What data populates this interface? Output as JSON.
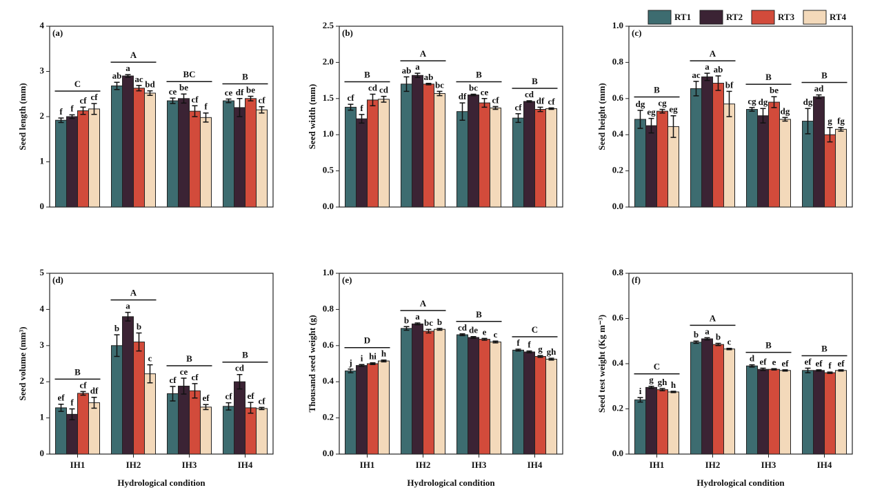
{
  "legend": [
    {
      "name": "RT1",
      "color": "#3d6c70"
    },
    {
      "name": "RT2",
      "color": "#3b2334"
    },
    {
      "name": "RT3",
      "color": "#d24b3b"
    },
    {
      "name": "RT4",
      "color": "#f3d9ba"
    }
  ],
  "chart_data": [
    {
      "type": "bar",
      "panel": "(a)",
      "y_label": "Seed length (mm)",
      "ylim": [
        0,
        4
      ],
      "yticks": [
        0,
        1,
        2,
        3,
        4
      ],
      "group_letters": [
        "C",
        "A",
        "BC",
        "B"
      ],
      "series": [
        {
          "values": [
            1.92,
            2.68,
            2.35,
            2.35
          ],
          "errors": [
            0.05,
            0.08,
            0.06,
            0.04
          ],
          "letters": [
            "f",
            "ab",
            "ce",
            "ce"
          ]
        },
        {
          "values": [
            2.0,
            2.9,
            2.4,
            2.2
          ],
          "errors": [
            0.04,
            0.03,
            0.1,
            0.2
          ],
          "letters": [
            "f",
            "a",
            "be",
            "df"
          ]
        },
        {
          "values": [
            2.13,
            2.63,
            2.12,
            2.4
          ],
          "errors": [
            0.08,
            0.06,
            0.12,
            0.05
          ],
          "letters": [
            "cf",
            "ac",
            "cf",
            "be"
          ]
        },
        {
          "values": [
            2.17,
            2.52,
            1.98,
            2.15
          ],
          "errors": [
            0.12,
            0.05,
            0.1,
            0.07
          ],
          "letters": [
            "cf",
            "bd",
            "f",
            "cf"
          ]
        }
      ]
    },
    {
      "type": "bar",
      "panel": "(b)",
      "y_label": "Seed width (mm)",
      "ylim": [
        0,
        2.5
      ],
      "yticks": [
        {
          "value": 0,
          "label": "0.0"
        },
        0.5,
        {
          "value": 1,
          "label": "1.0"
        },
        1.5,
        {
          "value": 2,
          "label": "2.0"
        },
        2.5
      ],
      "group_letters": [
        "B",
        "A",
        "B",
        "B"
      ],
      "series": [
        {
          "values": [
            1.38,
            1.7,
            1.32,
            1.23
          ],
          "errors": [
            0.04,
            0.1,
            0.12,
            0.06
          ],
          "letters": [
            "cf",
            "ab",
            "df",
            "cf"
          ]
        },
        {
          "values": [
            1.22,
            1.82,
            1.55,
            1.46
          ],
          "errors": [
            0.06,
            0.03,
            0.01,
            0.01
          ],
          "letters": [
            "f",
            "a",
            "bc",
            "cd"
          ]
        },
        {
          "values": [
            1.48,
            1.7,
            1.44,
            1.35
          ],
          "errors": [
            0.08,
            0.01,
            0.06,
            0.03
          ],
          "letters": [
            "cd",
            "ab",
            "ce",
            "df"
          ]
        },
        {
          "values": [
            1.49,
            1.57,
            1.37,
            1.36
          ],
          "errors": [
            0.04,
            0.03,
            0.02,
            0.01
          ],
          "letters": [
            "cd",
            "bc",
            "cf",
            "cf"
          ]
        }
      ]
    },
    {
      "type": "bar",
      "panel": "(c)",
      "y_label": "Seed height (mm)",
      "ylim": [
        0,
        1
      ],
      "yticks": [
        {
          "value": 0,
          "label": "0.0"
        },
        0.2,
        0.4,
        0.6,
        0.8,
        {
          "value": 1,
          "label": "1.0"
        }
      ],
      "group_letters": [
        "B",
        "A",
        "B",
        "B"
      ],
      "series": [
        {
          "values": [
            0.485,
            0.655,
            0.54,
            0.475
          ],
          "errors": [
            0.05,
            0.04,
            0.01,
            0.07
          ],
          "letters": [
            "dg",
            "ac",
            "cg",
            "dg"
          ]
        },
        {
          "values": [
            0.45,
            0.72,
            0.505,
            0.61
          ],
          "errors": [
            0.04,
            0.02,
            0.04,
            0.01
          ],
          "letters": [
            "eg",
            "a",
            "dg",
            "ad"
          ]
        },
        {
          "values": [
            0.53,
            0.685,
            0.58,
            0.4
          ],
          "errors": [
            0.01,
            0.04,
            0.03,
            0.04
          ],
          "letters": [
            "cg",
            "ab",
            "be",
            "g"
          ]
        },
        {
          "values": [
            0.445,
            0.57,
            0.485,
            0.43
          ],
          "errors": [
            0.06,
            0.07,
            0.01,
            0.01
          ],
          "letters": [
            "eg",
            "bf",
            "dg",
            "fg"
          ]
        }
      ]
    },
    {
      "type": "bar",
      "panel": "(d)",
      "y_label": "Seed volume (mm³)",
      "x_label": "Hydrological condition",
      "categories": [
        "IH1",
        "IH2",
        "IH3",
        "IH4"
      ],
      "ylim": [
        0,
        5
      ],
      "yticks": [
        0,
        1,
        2,
        3,
        4,
        5
      ],
      "group_letters": [
        "B",
        "A",
        "B",
        "B"
      ],
      "series": [
        {
          "values": [
            1.28,
            3.0,
            1.67,
            1.32
          ],
          "errors": [
            0.1,
            0.3,
            0.2,
            0.1
          ],
          "letters": [
            "ef",
            "b",
            "cf",
            "cf"
          ]
        },
        {
          "values": [
            1.1,
            3.8,
            1.88,
            2.0
          ],
          "errors": [
            0.15,
            0.12,
            0.22,
            0.2
          ],
          "letters": [
            "f",
            "a",
            "ce",
            "cd"
          ]
        },
        {
          "values": [
            1.68,
            3.1,
            1.75,
            1.28
          ],
          "errors": [
            0.05,
            0.25,
            0.2,
            0.15
          ],
          "letters": [
            "cf",
            "b",
            "cf",
            "ef"
          ]
        },
        {
          "values": [
            1.42,
            2.22,
            1.3,
            1.26
          ],
          "errors": [
            0.15,
            0.25,
            0.07,
            0.03
          ],
          "letters": [
            "df",
            "c",
            "ef",
            "cf"
          ]
        }
      ]
    },
    {
      "type": "bar",
      "panel": "(e)",
      "y_label": "Thousand seed weight (g)",
      "x_label": "Hydrological condition",
      "categories": [
        "IH1",
        "IH2",
        "IH3",
        "IH4"
      ],
      "ylim": [
        0,
        1
      ],
      "yticks": [
        {
          "value": 0,
          "label": "0.0"
        },
        0.2,
        0.4,
        0.6,
        0.8,
        {
          "value": 1,
          "label": "1.0"
        }
      ],
      "group_letters": [
        "D",
        "A",
        "B",
        "C"
      ],
      "series": [
        {
          "values": [
            0.46,
            0.695,
            0.66,
            0.575
          ],
          "errors": [
            0.01,
            0.01,
            0.005,
            0.005
          ],
          "letters": [
            "j",
            "b",
            "cd",
            "f"
          ]
        },
        {
          "values": [
            0.49,
            0.72,
            0.645,
            0.565
          ],
          "errors": [
            0.005,
            0.005,
            0.005,
            0.005
          ],
          "letters": [
            "i",
            "a",
            "de",
            "f"
          ]
        },
        {
          "values": [
            0.5,
            0.68,
            0.635,
            0.54
          ],
          "errors": [
            0.005,
            0.01,
            0.005,
            0.005
          ],
          "letters": [
            "hi",
            "bc",
            "e",
            "g"
          ]
        },
        {
          "values": [
            0.515,
            0.69,
            0.62,
            0.525
          ],
          "errors": [
            0.005,
            0.005,
            0.005,
            0.005
          ],
          "letters": [
            "h",
            "b",
            "c",
            "gh"
          ]
        }
      ]
    },
    {
      "type": "bar",
      "panel": "(f)",
      "y_label": "Seed test weight (Kg m⁻³)",
      "x_label": "Hydrological condition",
      "categories": [
        "IH1",
        "IH2",
        "IH3",
        "IH4"
      ],
      "ylim": [
        0,
        0.8
      ],
      "yticks": [
        {
          "value": 0,
          "label": "0.0"
        },
        0.2,
        0.4,
        0.6,
        0.8
      ],
      "group_letters": [
        "C",
        "A",
        "B",
        "B"
      ],
      "series": [
        {
          "values": [
            0.24,
            0.495,
            0.39,
            0.37
          ],
          "errors": [
            0.01,
            0.005,
            0.005,
            0.01
          ],
          "letters": [
            "i",
            "b",
            "d",
            "ef"
          ]
        },
        {
          "values": [
            0.295,
            0.51,
            0.375,
            0.37
          ],
          "errors": [
            0.005,
            0.005,
            0.005,
            0.003
          ],
          "letters": [
            "g",
            "a",
            "ef",
            "ef"
          ]
        },
        {
          "values": [
            0.285,
            0.485,
            0.375,
            0.36
          ],
          "errors": [
            0.005,
            0.005,
            0.003,
            0.003
          ],
          "letters": [
            "gh",
            "b",
            "e",
            "f"
          ]
        },
        {
          "values": [
            0.275,
            0.465,
            0.37,
            0.37
          ],
          "errors": [
            0.003,
            0.003,
            0.003,
            0.003
          ],
          "letters": [
            "h",
            "c",
            "ef",
            "ef"
          ]
        }
      ]
    }
  ]
}
